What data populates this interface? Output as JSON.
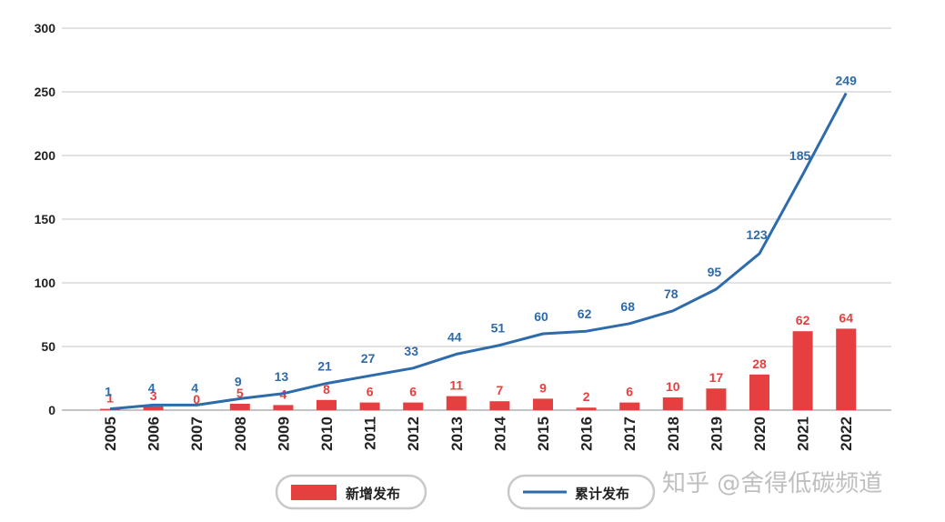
{
  "chart_data": {
    "type": "bar",
    "categories": [
      "2005",
      "2006",
      "2007",
      "2008",
      "2009",
      "2010",
      "2011",
      "2012",
      "2013",
      "2014",
      "2015",
      "2016",
      "2017",
      "2018",
      "2019",
      "2020",
      "2021",
      "2022"
    ],
    "series": [
      {
        "name": "新增发布",
        "type": "bar",
        "color": "#e5403f",
        "values": [
          1,
          3,
          0,
          5,
          4,
          8,
          6,
          6,
          11,
          7,
          9,
          2,
          6,
          10,
          17,
          28,
          62,
          64
        ]
      },
      {
        "name": "累计发布",
        "type": "line",
        "color": "#2e6bab",
        "values": [
          1,
          4,
          4,
          9,
          13,
          21,
          27,
          33,
          44,
          51,
          60,
          62,
          68,
          78,
          95,
          123,
          185,
          249
        ]
      }
    ],
    "yticks": [
      0,
      50,
      100,
      150,
      200,
      250,
      300
    ],
    "ylim": [
      0,
      300
    ],
    "grid": true,
    "legend_position": "bottom"
  },
  "watermark": "知乎 @舍得低碳频道"
}
